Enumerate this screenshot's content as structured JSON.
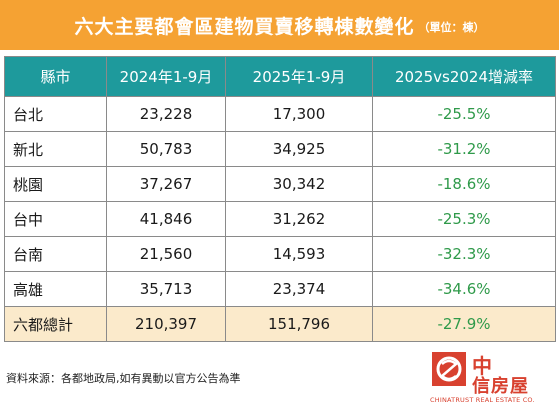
{
  "header": {
    "title": "六大主要都會區建物買賣移轉棟數變化",
    "unit": "（單位：棟）"
  },
  "table": {
    "columns": [
      "縣市",
      "2024年1-9月",
      "2025年1-9月",
      "2025vs2024增減率"
    ],
    "rows": [
      {
        "city": "台北",
        "y2024": "23,228",
        "y2025": "17,300",
        "change": "-25.5%"
      },
      {
        "city": "新北",
        "y2024": "50,783",
        "y2025": "34,925",
        "change": "-31.2%"
      },
      {
        "city": "桃園",
        "y2024": "37,267",
        "y2025": "30,342",
        "change": "-18.6%"
      },
      {
        "city": "台中",
        "y2024": "41,846",
        "y2025": "31,262",
        "change": "-25.3%"
      },
      {
        "city": "台南",
        "y2024": "21,560",
        "y2025": "14,593",
        "change": "-32.3%"
      },
      {
        "city": "高雄",
        "y2024": "35,713",
        "y2025": "23,374",
        "change": "-34.6%"
      }
    ],
    "total": {
      "city": "六都總計",
      "y2024": "210,397",
      "y2025": "151,796",
      "change": "-27.9%"
    }
  },
  "footer": {
    "source": "資料來源：各都地政局,如有異動以官方公告為準"
  },
  "logo": {
    "name_line1": "中",
    "name_line2": "信房屋",
    "english": "CHINATRUST REAL ESTATE CO."
  },
  "colors": {
    "title_bg": "#f5a233",
    "header_bg": "#1e9a9c",
    "total_row_bg": "#fbeacb",
    "change_text": "#2f9a4a",
    "brand_red": "#d8412f"
  }
}
